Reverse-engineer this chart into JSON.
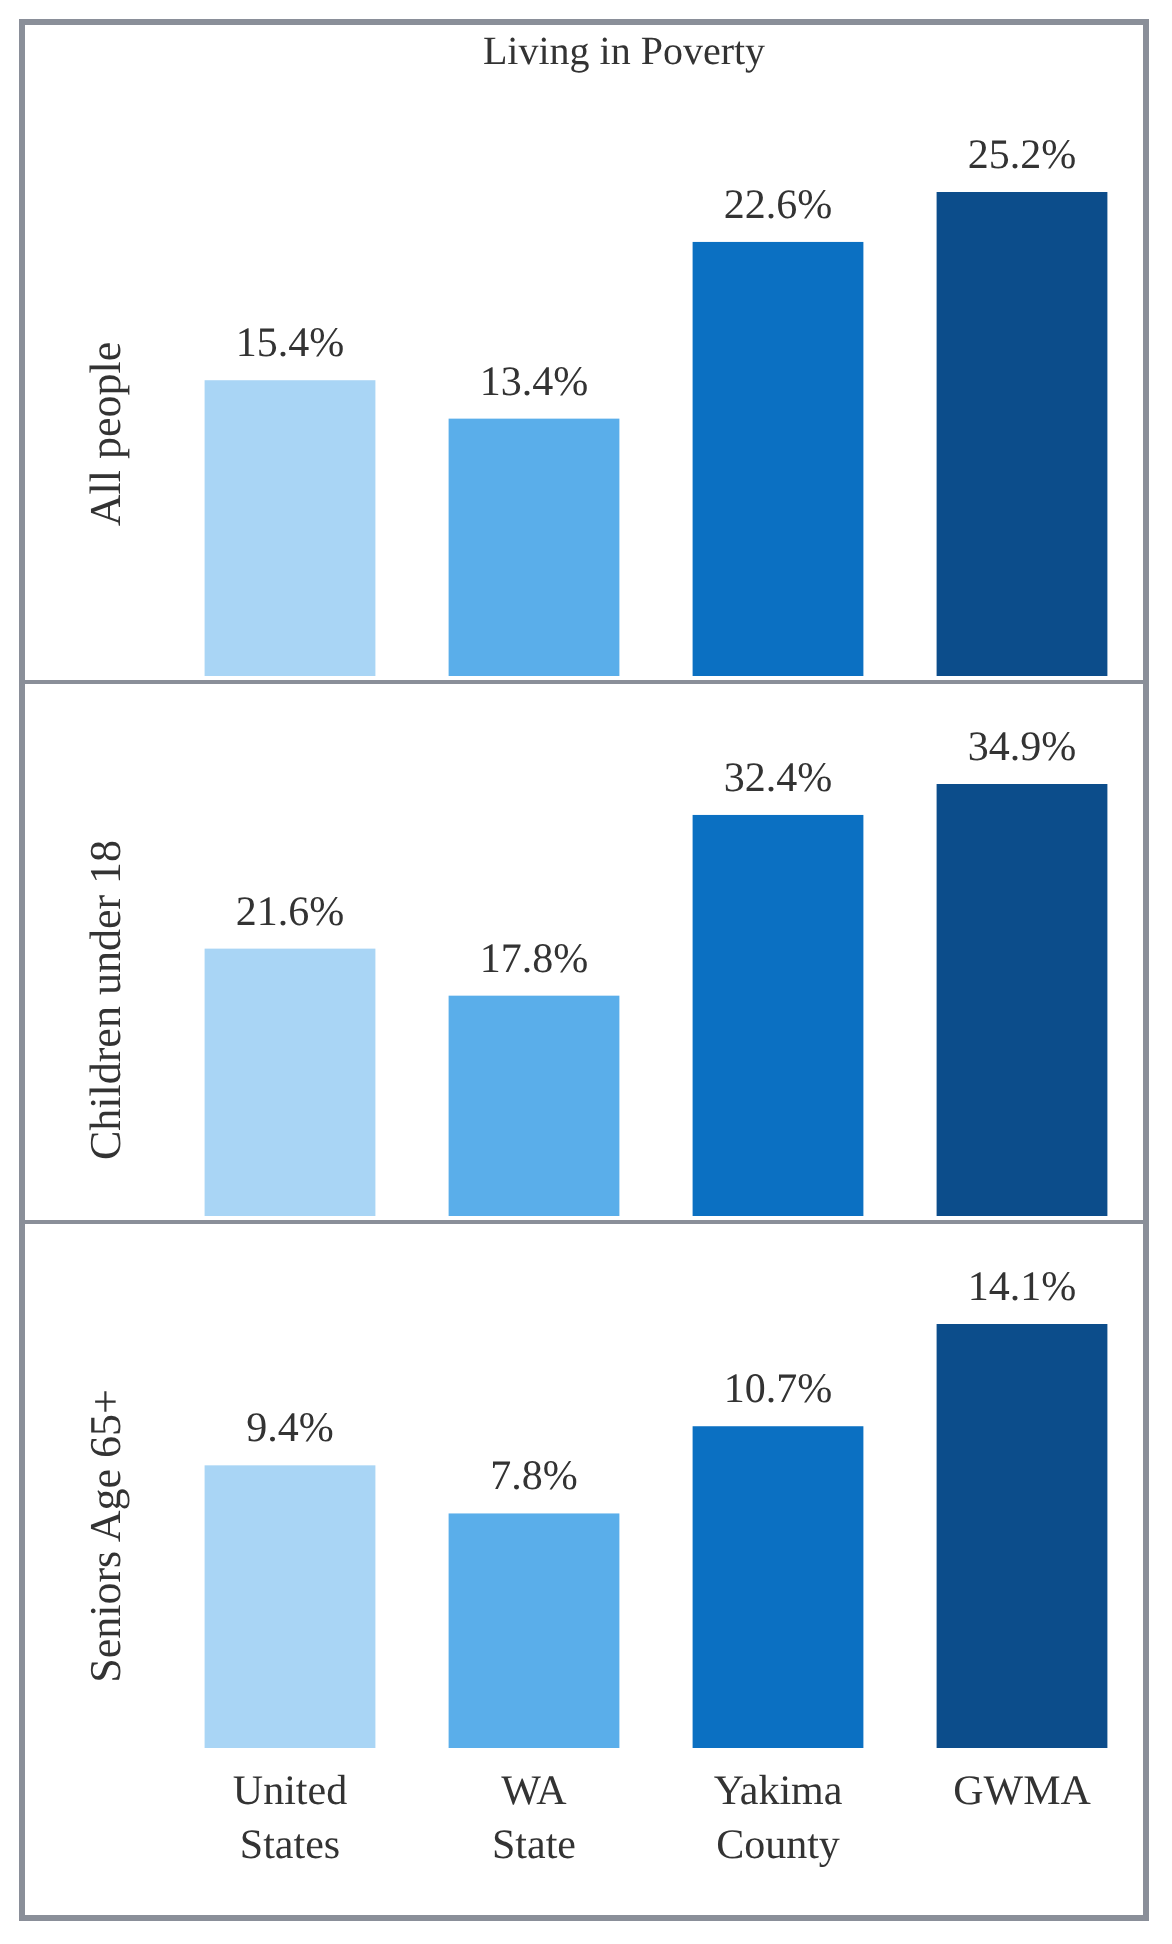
{
  "chart_data": [
    {
      "type": "bar",
      "title": "Living in Poverty",
      "ylabel": "All people",
      "categories": [
        null,
        null,
        null,
        null
      ],
      "values": [
        15.4,
        13.4,
        22.6,
        25.2
      ],
      "value_labels": [
        "15.4%",
        "13.4%",
        "22.6%",
        "25.2%"
      ],
      "colors": [
        "#a9d5f5",
        "#5aaeea",
        "#0b70c2",
        "#0c4d8b"
      ],
      "tick_labels": false
    },
    {
      "type": "bar",
      "ylabel": "Children under 18",
      "categories": [
        null,
        null,
        null,
        null
      ],
      "values": [
        21.6,
        17.8,
        32.4,
        34.9
      ],
      "value_labels": [
        "21.6%",
        "17.8%",
        "32.4%",
        "34.9%"
      ],
      "colors": [
        "#a9d5f5",
        "#5aaeea",
        "#0b70c2",
        "#0c4d8b"
      ],
      "tick_labels": false
    },
    {
      "type": "bar",
      "ylabel": "Seniors Age 65+",
      "categories": [
        "United States",
        "WA State",
        "Yakima County",
        "GWMA"
      ],
      "values": [
        9.4,
        7.8,
        10.7,
        14.1
      ],
      "value_labels": [
        "9.4%",
        "7.8%",
        "10.7%",
        "14.1%"
      ],
      "colors": [
        "#a9d5f5",
        "#5aaeea",
        "#0b70c2",
        "#0c4d8b"
      ],
      "tick_labels": "x"
    }
  ]
}
